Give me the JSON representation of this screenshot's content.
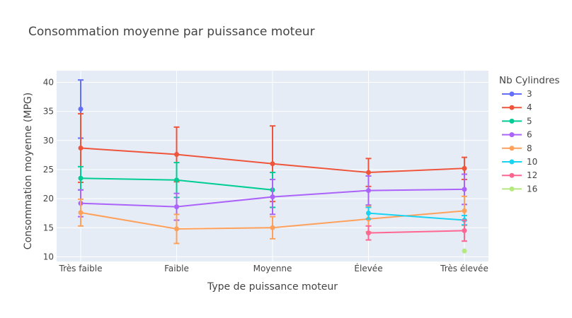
{
  "chart_data": {
    "type": "line",
    "title": "Consommation moyenne par puissance moteur",
    "xlabel": "Type de puissance moteur",
    "ylabel": "Consommation moyenne (MPG)",
    "categories": [
      "Très faible",
      "Faible",
      "Moyenne",
      "Élevée",
      "Très élevée"
    ],
    "ylim": [
      9.2,
      42
    ],
    "yticks": [
      10,
      15,
      20,
      25,
      30,
      35,
      40
    ],
    "grid": true,
    "legend_title": "Nb Cylindres",
    "legend_position": "right",
    "series": [
      {
        "name": "3",
        "color": "#636efa",
        "values": [
          35.4,
          null,
          null,
          null,
          null
        ],
        "err": [
          5.0,
          null,
          null,
          null,
          null
        ]
      },
      {
        "name": "4",
        "color": "#EF553B",
        "values": [
          28.7,
          27.6,
          26.0,
          24.5,
          25.2
        ],
        "err": [
          5.9,
          4.7,
          6.5,
          2.4,
          1.9
        ]
      },
      {
        "name": "5",
        "color": "#00cc96",
        "values": [
          23.5,
          23.2,
          21.5,
          null,
          null
        ],
        "err": [
          2.0,
          3.0,
          3.0,
          null,
          null
        ]
      },
      {
        "name": "6",
        "color": "#ab63fa",
        "values": [
          19.2,
          18.6,
          20.3,
          21.4,
          21.6
        ],
        "err": [
          2.3,
          2.3,
          3.0,
          2.5,
          2.6
        ]
      },
      {
        "name": "8",
        "color": "#FFA15A",
        "values": [
          17.6,
          14.8,
          15.0,
          16.5,
          17.9
        ],
        "err": [
          2.3,
          2.5,
          1.9,
          2.2,
          2.5
        ]
      },
      {
        "name": "10",
        "color": "#19d3f3",
        "values": [
          null,
          null,
          null,
          17.5,
          16.3
        ],
        "err": [
          null,
          null,
          null,
          1.0,
          0.8
        ]
      },
      {
        "name": "12",
        "color": "#FF6692",
        "values": [
          null,
          null,
          null,
          14.1,
          14.5
        ],
        "err": [
          null,
          null,
          null,
          1.2,
          1.8
        ]
      },
      {
        "name": "16",
        "color": "#B6E880",
        "values": [
          null,
          null,
          null,
          null,
          11.0
        ],
        "err": [
          null,
          null,
          null,
          null,
          0.0
        ]
      }
    ]
  }
}
